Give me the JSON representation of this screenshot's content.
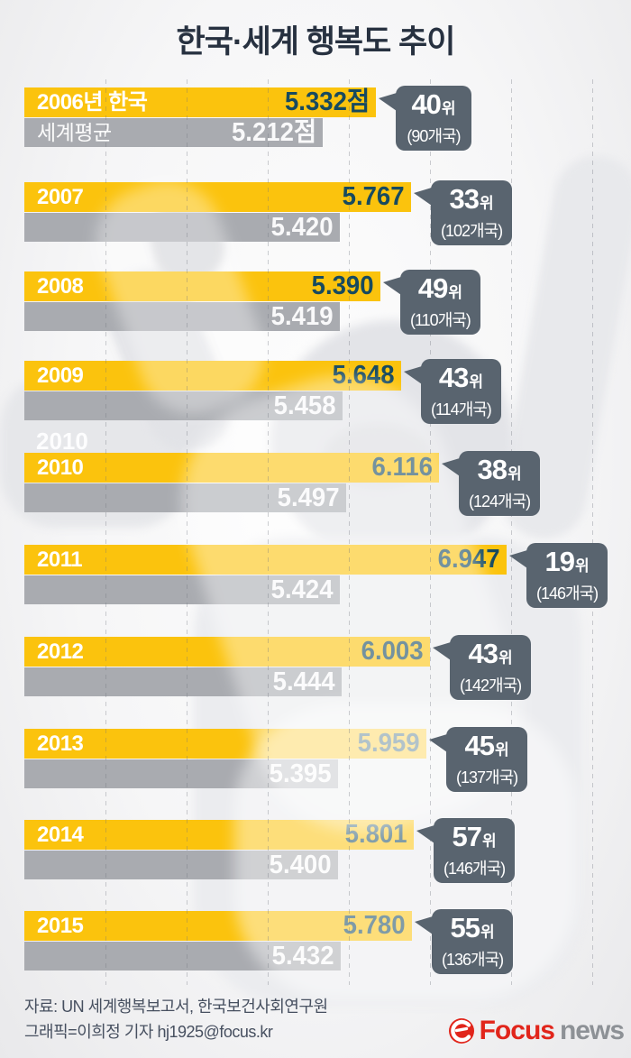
{
  "title": "한국·세계 행복도 추이",
  "ghost_label": "2010",
  "chart_data": {
    "type": "bar",
    "orientation": "horizontal",
    "title": "한국·세계 행복도 추이",
    "categories": [
      "2006",
      "2007",
      "2008",
      "2009",
      "2010",
      "2011",
      "2012",
      "2013",
      "2014",
      "2015"
    ],
    "series": [
      {
        "name": "한국",
        "color": "#fbc30d",
        "values": [
          5.332,
          5.767,
          5.39,
          5.648,
          6.116,
          6.947,
          6.003,
          5.959,
          5.801,
          5.78
        ]
      },
      {
        "name": "세계평균",
        "color": "#a9abb0",
        "values": [
          5.212,
          5.42,
          5.419,
          5.458,
          5.497,
          5.424,
          5.444,
          5.395,
          5.4,
          5.432
        ]
      }
    ],
    "ranks": [
      "40위 (90개국)",
      "33위 (102개국)",
      "49위 (110개국)",
      "43위 (114개국)",
      "38위 (124개국)",
      "19위 (146개국)",
      "43위 (142개국)",
      "45위 (137개국)",
      "57위 (146개국)",
      "55위 (136개국)"
    ],
    "xlim": [
      1,
      8.3
    ],
    "grid": "vertical-dashed",
    "legend_position": "none"
  },
  "rows": [
    {
      "year_label": "2006년 한국",
      "korea_value": 5.332,
      "korea_text": "5.332점",
      "world_label": "세계평균",
      "world_value": 5.212,
      "world_text": "5.212점",
      "rank_num": "40",
      "rank_unit": "위",
      "countries": "(90개국)"
    },
    {
      "year_label": "2007",
      "korea_value": 5.767,
      "korea_text": "5.767",
      "world_label": "",
      "world_value": 5.42,
      "world_text": "5.420",
      "rank_num": "33",
      "rank_unit": "위",
      "countries": "(102개국)"
    },
    {
      "year_label": "2008",
      "korea_value": 5.39,
      "korea_text": "5.390",
      "world_label": "",
      "world_value": 5.419,
      "world_text": "5.419",
      "rank_num": "49",
      "rank_unit": "위",
      "countries": "(110개국)"
    },
    {
      "year_label": "2009",
      "korea_value": 5.648,
      "korea_text": "5.648",
      "world_label": "",
      "world_value": 5.458,
      "world_text": "5.458",
      "rank_num": "43",
      "rank_unit": "위",
      "countries": "(114개국)"
    },
    {
      "year_label": "2010",
      "korea_value": 6.116,
      "korea_text": "6.116",
      "world_label": "",
      "world_value": 5.497,
      "world_text": "5.497",
      "rank_num": "38",
      "rank_unit": "위",
      "countries": "(124개국)"
    },
    {
      "year_label": "2011",
      "korea_value": 6.947,
      "korea_text": "6.947",
      "world_label": "",
      "world_value": 5.424,
      "world_text": "5.424",
      "rank_num": "19",
      "rank_unit": "위",
      "countries": "(146개국)"
    },
    {
      "year_label": "2012",
      "korea_value": 6.003,
      "korea_text": "6.003",
      "world_label": "",
      "world_value": 5.444,
      "world_text": "5.444",
      "rank_num": "43",
      "rank_unit": "위",
      "countries": "(142개국)"
    },
    {
      "year_label": "2013",
      "korea_value": 5.959,
      "korea_text": "5.959",
      "world_label": "",
      "world_value": 5.395,
      "world_text": "5.395",
      "rank_num": "45",
      "rank_unit": "위",
      "countries": "(137개국)"
    },
    {
      "year_label": "2014",
      "korea_value": 5.801,
      "korea_text": "5.801",
      "world_label": "",
      "world_value": 5.4,
      "world_text": "5.400",
      "rank_num": "57",
      "rank_unit": "위",
      "countries": "(146개국)"
    },
    {
      "year_label": "2015",
      "korea_value": 5.78,
      "korea_text": "5.780",
      "world_label": "",
      "world_value": 5.432,
      "world_text": "5.432",
      "rank_num": "55",
      "rank_unit": "위",
      "countries": "(136개국)"
    }
  ],
  "footer": {
    "source": "자료: UN 세계행복보고서, 한국보건사회연구원",
    "credit": "그래픽=이희정 기자 hj1925@focus.kr"
  },
  "logo": {
    "brand": "Focus",
    "suffix": "news"
  },
  "colors": {
    "korea_bar": "#fbc30d",
    "world_bar": "#a9abb0",
    "badge": "#59646f",
    "score_text": "#174a5f",
    "title_text": "#273140",
    "logo_red": "#e1251b",
    "logo_gray": "#8d9196"
  }
}
